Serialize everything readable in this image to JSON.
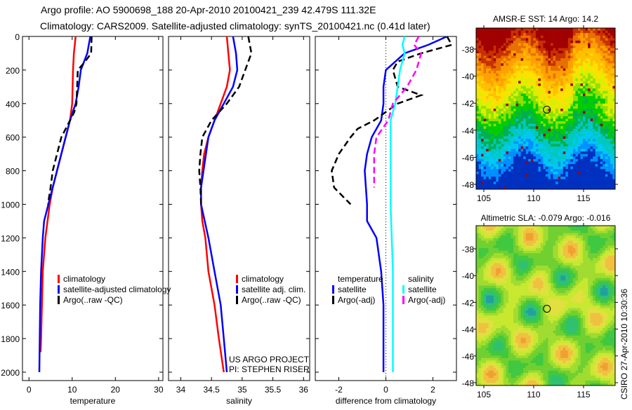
{
  "title": {
    "line1": "Argo profile: AO 5900698_188 20-Apr-2010 20100421_239 42.479S 111.32E",
    "line2": "Climatology: CARS2009. Satellite-adjusted climatology: synTS_20100421.nc (0.41d later)"
  },
  "credit": {
    "project": "US ARGO PROJECT",
    "pi": "PI: STEPHEN RISER",
    "stamp": "CSIRO 27-Apr-2010 10:30:36"
  },
  "colors": {
    "clim": "#ff0000",
    "sat": "#0000ff",
    "argo": "#000000",
    "salsat": "#00ffff",
    "salargo": "#ff00ff"
  },
  "chart_data": [
    {
      "type": "line",
      "xlabel": "temperature",
      "xlim": [
        -1.5,
        31
      ],
      "xticks": [
        0,
        10,
        20,
        30
      ],
      "ylim": [
        0,
        2050
      ],
      "yticks": [
        0,
        200,
        400,
        600,
        800,
        1000,
        1200,
        1400,
        1600,
        1800,
        2000
      ],
      "legend": [
        "climatology",
        "satellite-adjusted climatology",
        "Argo(..raw -QC)"
      ],
      "series": [
        {
          "name": "climatology",
          "color": "#ff0000",
          "depth": [
            0,
            50,
            100,
            200,
            400,
            500,
            600,
            700,
            800,
            900,
            1000,
            1200,
            1400,
            1600,
            1800,
            1880
          ],
          "values": [
            10.8,
            10.6,
            10.4,
            10.2,
            10,
            9.5,
            8.5,
            7.5,
            6.5,
            5.5,
            4.8,
            3.8,
            3.2,
            3,
            2.8,
            2.7
          ]
        },
        {
          "name": "satellite-adjusted climatology",
          "color": "#0000ff",
          "depth": [
            0,
            100,
            200,
            300,
            400,
            500,
            600,
            800,
            1000,
            1100,
            1200,
            1400,
            1600,
            1800,
            2000
          ],
          "values": [
            14.2,
            13.5,
            12,
            11.5,
            10.8,
            9.5,
            8.5,
            6.5,
            4.5,
            3.5,
            3.2,
            2.8,
            2.6,
            2.5,
            2.4
          ]
        },
        {
          "name": "Argo(..raw -QC)",
          "color": "#000000",
          "dashed": true,
          "depth": [
            0,
            100,
            150,
            200,
            400,
            450,
            500,
            600,
            700,
            800,
            900,
            1000
          ],
          "values": [
            14.5,
            14.4,
            13,
            11.3,
            11,
            10.5,
            9.5,
            7.5,
            6.5,
            5.5,
            5,
            4.4
          ]
        }
      ]
    },
    {
      "type": "line",
      "xlabel": "salinity",
      "xlim": [
        33.8,
        36.1
      ],
      "xticks": [
        34,
        34.5,
        35,
        35.5,
        36
      ],
      "legend": [
        "climatology",
        "satellite adj. clim.",
        "Argo(..raw -QC)"
      ],
      "series": [
        {
          "name": "climatology",
          "color": "#ff0000",
          "depth": [
            0,
            200,
            300,
            400,
            500,
            600,
            700,
            800,
            900,
            1000,
            1100,
            1200,
            1400,
            1600,
            1800,
            2000
          ],
          "values": [
            34.75,
            34.8,
            34.75,
            34.65,
            34.55,
            34.45,
            34.38,
            34.35,
            34.33,
            34.33,
            34.35,
            34.4,
            34.45,
            34.55,
            34.62,
            34.7
          ]
        },
        {
          "name": "satellite adj. clim.",
          "color": "#0000ff",
          "depth": [
            0,
            100,
            200,
            300,
            400,
            500,
            600,
            800,
            900,
            1000,
            1200,
            1400,
            1600,
            1800,
            2000
          ],
          "values": [
            34.85,
            34.9,
            34.92,
            34.85,
            34.7,
            34.55,
            34.45,
            34.37,
            34.33,
            34.33,
            34.45,
            34.55,
            34.65,
            34.7,
            34.75
          ]
        },
        {
          "name": "Argo(..raw -QC)",
          "color": "#000000",
          "dashed": true,
          "depth": [
            0,
            100,
            200,
            300,
            400,
            500,
            600,
            700,
            800,
            900,
            1000
          ],
          "values": [
            35.1,
            35.15,
            35.05,
            34.95,
            34.75,
            34.5,
            34.35,
            34.32,
            34.3,
            34.32,
            34.33
          ]
        }
      ]
    },
    {
      "type": "line",
      "xlabel": "difference from climatology",
      "xlim": [
        -3,
        3
      ],
      "xticks": [
        -2,
        0,
        2
      ],
      "legend_temp": [
        "temperature",
        "satellite",
        "Argo(-adj)"
      ],
      "legend_sal": [
        "salinity",
        "satellite",
        "Argo(-adj)"
      ],
      "series": [
        {
          "name": "temperature satellite",
          "color": "#0000ff",
          "depth": [
            0,
            50,
            100,
            200,
            300,
            400,
            500,
            600,
            700,
            800,
            1000,
            1100,
            1200,
            1400,
            1600,
            1800,
            2000
          ],
          "values": [
            2.6,
            1.8,
            0.8,
            0,
            -0.1,
            -0.1,
            -0.2,
            -0.6,
            -0.8,
            -0.9,
            -0.8,
            -0.8,
            -0.4,
            -0.2,
            -0.1,
            -0.1,
            -0.1
          ]
        },
        {
          "name": "temperature Argo(-adj)",
          "color": "#000000",
          "dashed": true,
          "depth": [
            0,
            50,
            100,
            150,
            200,
            300,
            350,
            400,
            450,
            500,
            550,
            600,
            700,
            800,
            900,
            1000
          ],
          "values": [
            2.6,
            2.8,
            1.5,
            0.5,
            0.3,
            0.5,
            1.5,
            0.5,
            0,
            -0.5,
            -1.2,
            -1.5,
            -2,
            -2.3,
            -2.2,
            -1.5
          ]
        },
        {
          "name": "salinity satellite",
          "color": "#00ffff",
          "depth": [
            0,
            50,
            100,
            200,
            300,
            400,
            500,
            600,
            800,
            1000,
            1400,
            1600,
            2000
          ],
          "values": [
            0.8,
            0.7,
            0.8,
            0.6,
            0.5,
            0.4,
            0.2,
            0.2,
            0.2,
            0.2,
            0.3,
            0.3,
            0.3
          ]
        },
        {
          "name": "salinity Argo(-adj)",
          "color": "#ff00ff",
          "dashed": true,
          "depth": [
            0,
            50,
            100,
            200,
            300,
            400,
            500,
            600,
            700,
            800,
            900
          ],
          "values": [
            1.4,
            1.2,
            1.5,
            1.3,
            0.9,
            0.3,
            0.1,
            -0.4,
            -0.5,
            -0.5,
            -0.5
          ]
        }
      ]
    },
    {
      "type": "heatmap",
      "title": "AMSR-E SST: 14 Argo: 14.2",
      "xticks": [
        105,
        110,
        115
      ],
      "yticks": [
        -38,
        -40,
        -42,
        -44,
        -46,
        -48
      ],
      "marker": [
        111.32,
        -42.479
      ]
    },
    {
      "type": "heatmap",
      "title": "Altimetric SLA: -0.079 Argo: -0.016",
      "xticks": [
        105,
        110,
        115
      ],
      "yticks": [
        -38,
        -40,
        -42,
        -44,
        -46,
        -48
      ],
      "marker": [
        111.32,
        -42.479
      ]
    }
  ]
}
